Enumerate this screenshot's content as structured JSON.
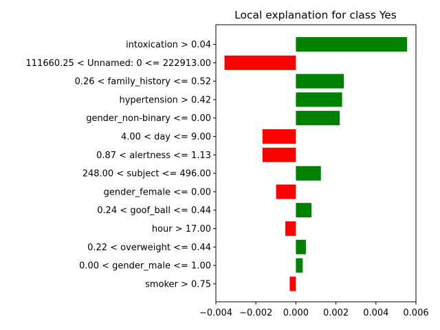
{
  "chart_data": {
    "type": "bar",
    "orientation": "horizontal",
    "title": "Local explanation for class Yes",
    "xlabel": "",
    "ylabel": "",
    "xlim": [
      -0.004,
      0.006
    ],
    "grid": false,
    "categories": [
      "intoxication > 0.04",
      "111660.25 < Unnamed: 0 <= 222913.00",
      "0.26 < family_history <= 0.52",
      "hypertension > 0.42",
      "gender_non-binary <= 0.00",
      "4.00 < day <= 9.00",
      "0.87 < alertness <= 1.13",
      "248.00 < subject <= 496.00",
      "gender_female <= 0.00",
      "0.24 < goof_ball <= 0.44",
      "hour > 17.00",
      "0.22 < overweight <= 0.44",
      "0.00 < gender_male <= 1.00",
      "smoker > 0.75"
    ],
    "values": [
      0.00556,
      -0.00357,
      0.0024,
      0.00231,
      0.00219,
      -0.00167,
      -0.00167,
      0.00125,
      -0.00099,
      0.00078,
      -0.00053,
      0.0005,
      0.00034,
      -0.00031
    ],
    "x_ticks": [
      -0.004,
      -0.002,
      0.0,
      0.002,
      0.004,
      0.006
    ],
    "x_tick_labels": [
      "−0.004",
      "−0.002",
      "0.000",
      "0.002",
      "0.004",
      "0.006"
    ],
    "colors": {
      "positive": "#008000",
      "negative": "#ff0000"
    }
  }
}
